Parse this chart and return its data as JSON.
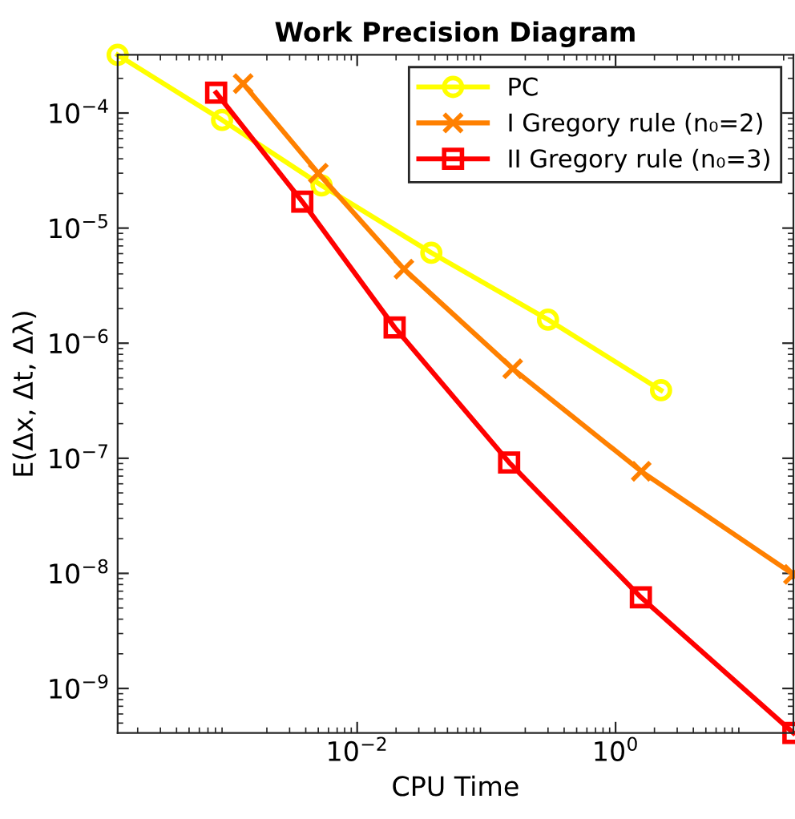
{
  "chart_data": {
    "type": "line",
    "title": "Work Precision Diagram",
    "xlabel": "CPU Time",
    "ylabel": "E(Δx, Δt, Δλ)",
    "log": "xy",
    "grid": false,
    "legend": "top right",
    "line_style": "solid",
    "xlim": [
      0.00014,
      23.8
    ],
    "ylim": [
      4.1e-10,
      0.00032
    ],
    "xticks": [
      {
        "value": 0.01,
        "label": "10$^{−2}$"
      },
      {
        "value": 1,
        "label": "10$^{0}$"
      }
    ],
    "yticks": [
      {
        "value": 1e-09,
        "label": "10$^{−9}$"
      },
      {
        "value": 1e-08,
        "label": "10$^{−8}$"
      },
      {
        "value": 1e-07,
        "label": "10$^{−7}$"
      },
      {
        "value": 1e-06,
        "label": "10$^{−6}$"
      },
      {
        "value": 1e-05,
        "label": "10$^{−5}$"
      },
      {
        "value": 0.0001,
        "label": "10$^{−4}$"
      }
    ],
    "series": [
      {
        "name": "PC",
        "color": "#ffff00",
        "marker": "circle",
        "x": [
          0.00014,
          0.0009,
          0.0053,
          0.0375,
          0.3,
          2.25
        ],
        "values": [
          0.00032,
          8.7e-05,
          2.35e-05,
          6.1e-06,
          1.6e-06,
          3.9e-07
        ]
      },
      {
        "name": "I Gregory rule (n₀=2)",
        "color": "#ff8000",
        "marker": "cross",
        "x": [
          0.00131,
          0.005,
          0.023,
          0.16,
          1.58,
          23.8
        ],
        "values": [
          0.00018,
          3e-05,
          4.4e-06,
          6e-07,
          7.7e-08,
          9.8e-09
        ]
      },
      {
        "name": "II Gregory rule (n₀=3)",
        "color": "#ff0000",
        "marker": "square",
        "x": [
          0.00081,
          0.00376,
          0.0195,
          0.15,
          1.57,
          23.8
        ],
        "values": [
          0.00015,
          1.7e-05,
          1.37e-06,
          9.2e-08,
          6.2e-09,
          4.1e-10
        ]
      }
    ]
  }
}
